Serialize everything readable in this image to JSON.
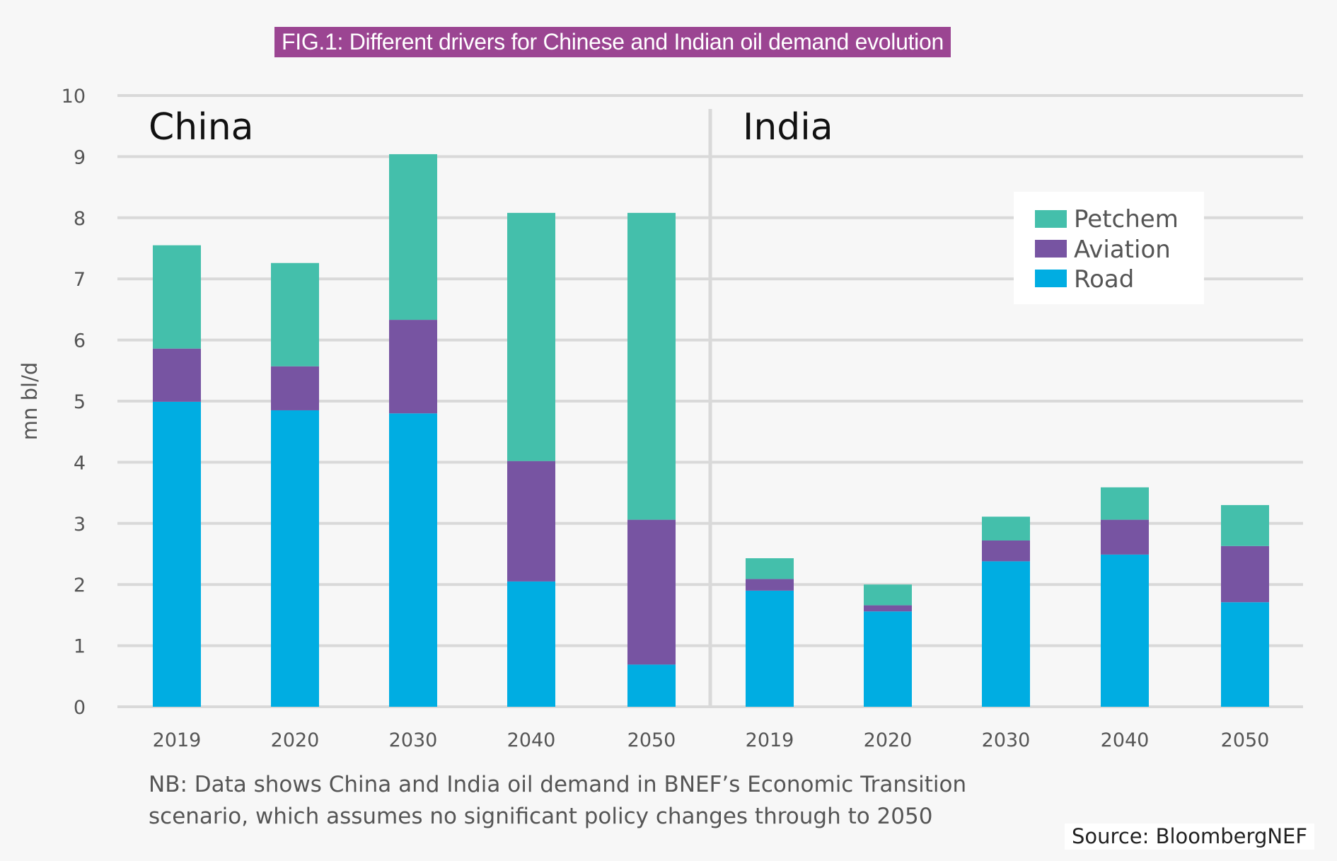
{
  "title": "FIG.1: Different drivers for Chinese and Indian oil demand evolution",
  "footnote": {
    "line1": "NB: Data shows China and India oil demand in BNEF’s Economic Transition",
    "line2": "scenario, which assumes no significant policy changes through to 2050"
  },
  "source": "Source: BloombergNEF",
  "colors": {
    "Petchem": "#44bfab",
    "Aviation": "#7754a2",
    "Road": "#00ade2",
    "title_bg": "#9b4592",
    "grid": "#d9d9d9"
  },
  "chart_data": {
    "type": "bar",
    "stacked": true,
    "title": "FIG.1: Different drivers for Chinese and Indian oil demand evolution",
    "xlabel": "",
    "ylabel": "mn bl/d",
    "ylim": [
      0,
      10
    ],
    "yticks": [
      "0",
      "1",
      "2",
      "3",
      "4",
      "5",
      "6",
      "7",
      "8",
      "9",
      "10"
    ],
    "grid": true,
    "legend": {
      "position": "top-right",
      "entries": [
        "Petchem",
        "Aviation",
        "Road"
      ]
    },
    "panels": [
      {
        "name": "China",
        "categories": [
          "2019",
          "2020",
          "2030",
          "2040",
          "2050"
        ],
        "series": [
          {
            "name": "Road",
            "values": [
              4.99,
              4.85,
              4.8,
              2.05,
              0.69
            ]
          },
          {
            "name": "Aviation",
            "values": [
              0.87,
              0.72,
              1.53,
              1.97,
              2.37
            ]
          },
          {
            "name": "Petchem",
            "values": [
              1.69,
              1.69,
              2.71,
              4.06,
              5.02
            ]
          }
        ]
      },
      {
        "name": "India",
        "categories": [
          "2019",
          "2020",
          "2030",
          "2040",
          "2050"
        ],
        "series": [
          {
            "name": "Road",
            "values": [
              1.9,
              1.56,
              2.38,
              2.49,
              1.71
            ]
          },
          {
            "name": "Aviation",
            "values": [
              0.19,
              0.1,
              0.34,
              0.57,
              0.92
            ]
          },
          {
            "name": "Petchem",
            "values": [
              0.34,
              0.34,
              0.39,
              0.53,
              0.67
            ]
          }
        ]
      }
    ]
  }
}
